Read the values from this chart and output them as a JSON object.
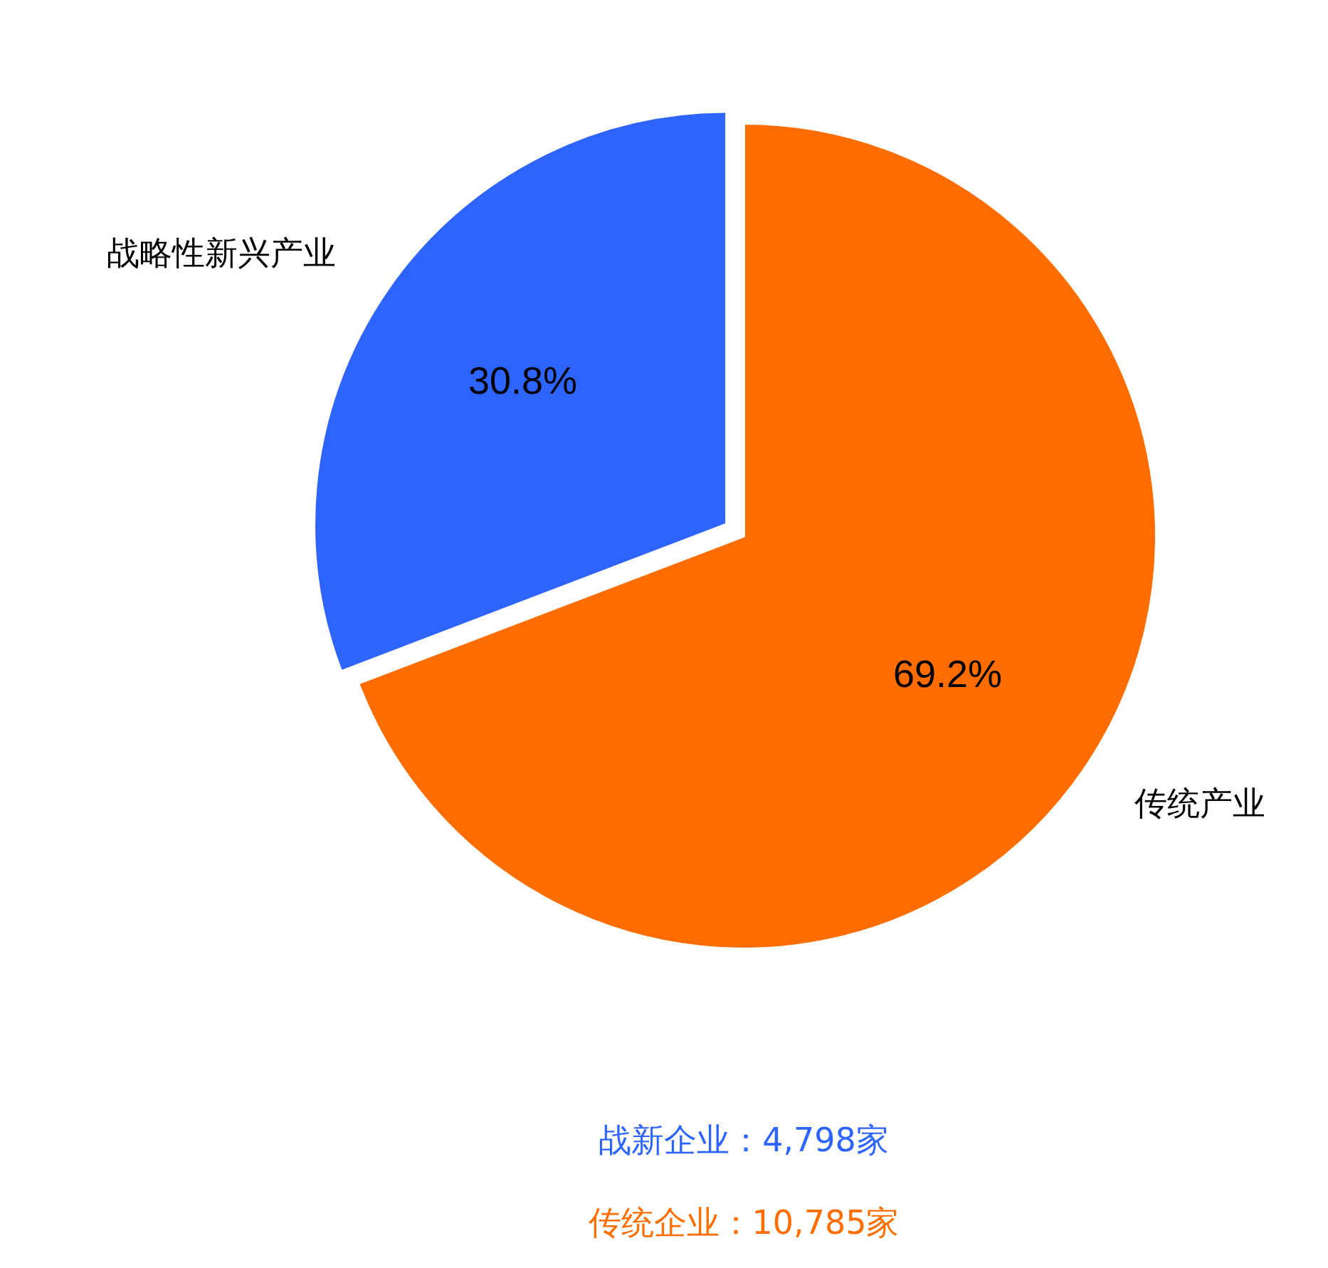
{
  "chart_data": {
    "type": "pie",
    "categories": [
      "战略性新兴产业",
      "传统产业"
    ],
    "values": [
      30.8,
      69.2
    ],
    "colors": [
      "#2e64fe",
      "#ff6d00"
    ],
    "value_labels": [
      "30.8%",
      "69.2%"
    ],
    "annotations": [
      "战新企业：4,798家",
      "传统企业：10,785家"
    ]
  }
}
